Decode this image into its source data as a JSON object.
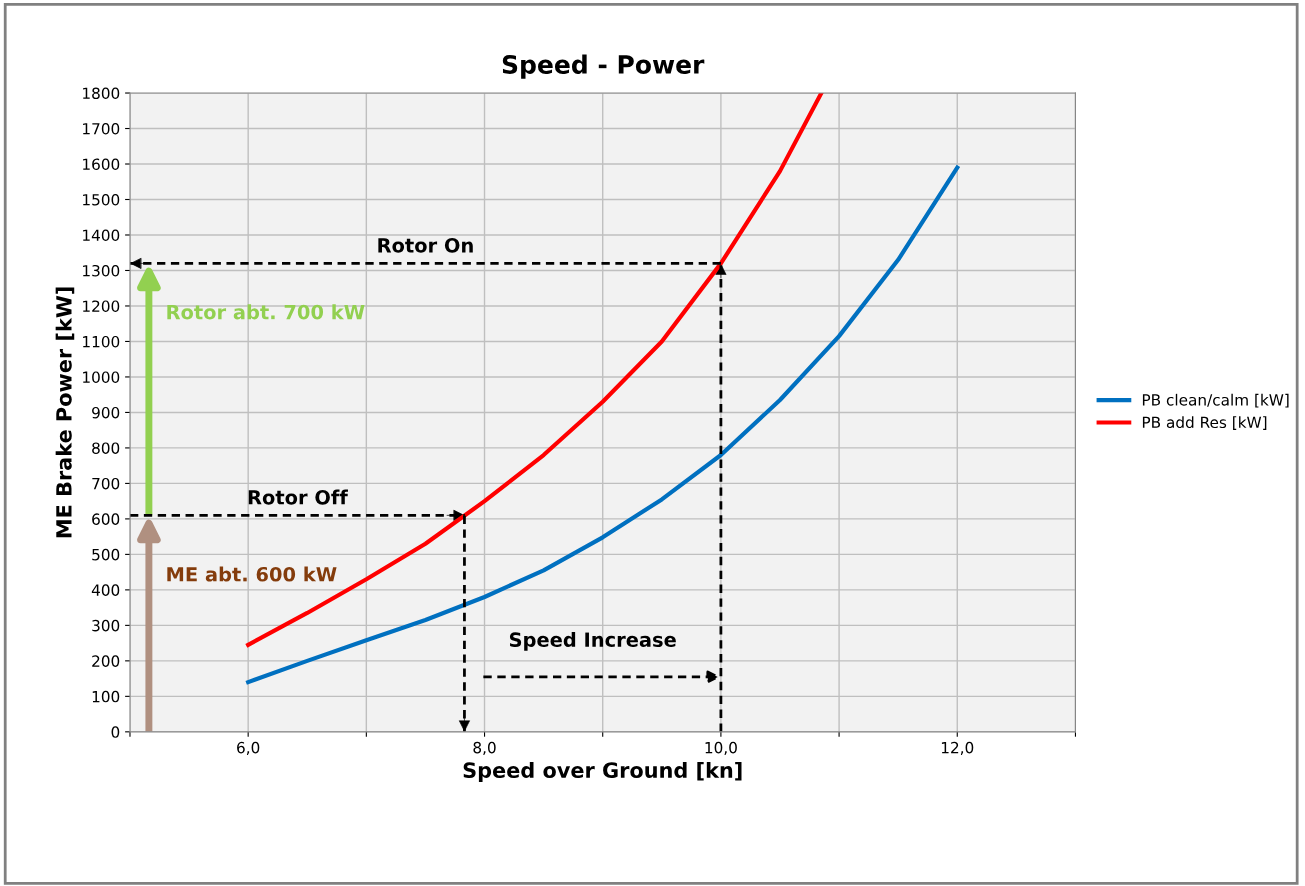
{
  "chart_data": {
    "type": "line",
    "title": "Speed - Power",
    "xlabel": "Speed over Ground [kn]",
    "ylabel": "ME Brake Power [kW]",
    "xlim": [
      5,
      13
    ],
    "ylim": [
      0,
      1800
    ],
    "xticks": [
      {
        "value": 5,
        "label": null
      },
      {
        "value": 6,
        "label": "6,0"
      },
      {
        "value": 7,
        "label": null
      },
      {
        "value": 8,
        "label": "8,0"
      },
      {
        "value": 9,
        "label": null
      },
      {
        "value": 10,
        "label": "10,0"
      },
      {
        "value": 11,
        "label": null
      },
      {
        "value": 12,
        "label": "12,0"
      },
      {
        "value": 13,
        "label": null
      }
    ],
    "yticks": [
      0,
      100,
      200,
      300,
      400,
      500,
      600,
      700,
      800,
      900,
      1000,
      1100,
      1200,
      1300,
      1400,
      1500,
      1600,
      1700,
      1800
    ],
    "grid": true,
    "legend": "right",
    "marker": "none",
    "series": [
      {
        "name": "PB clean/calm [kW]",
        "color": "#0070c0",
        "x": [
          6,
          6.5,
          7,
          7.5,
          8,
          8.5,
          9,
          9.5,
          10,
          10.5,
          11,
          11.5,
          12
        ],
        "values": [
          140,
          200,
          258,
          315,
          380,
          455,
          548,
          655,
          780,
          935,
          1115,
          1330,
          1590
        ]
      },
      {
        "name": "PB add Res [kW]",
        "color": "#ff0000",
        "x": [
          6,
          6.5,
          7,
          7.5,
          8,
          8.5,
          9,
          9.5,
          10,
          10.5,
          10.85
        ],
        "values": [
          245,
          335,
          430,
          530,
          650,
          780,
          930,
          1100,
          1320,
          1580,
          1800
        ]
      }
    ],
    "ref_lines": [
      {
        "axis": "y",
        "value": 1320,
        "label": "Rotor On",
        "color": "#000000",
        "line_style": "dashed"
      },
      {
        "axis": "x",
        "value": 10,
        "color": "#000000",
        "line_style": "dashed"
      },
      {
        "axis": "y",
        "value": 610,
        "label": "Rotor Off",
        "color": "#000000",
        "line_style": "dashed"
      },
      {
        "axis": "x",
        "value": 7.83,
        "color": "#000000",
        "line_style": "dashed"
      }
    ],
    "annotations": [
      "Speed Increase",
      "Rotor abt. 700 kW",
      "ME abt. 600 kW"
    ]
  }
}
